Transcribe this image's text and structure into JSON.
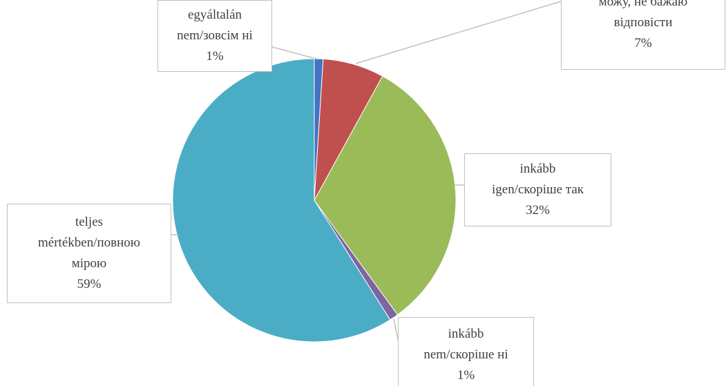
{
  "chart_data": {
    "type": "pie",
    "categories": [
      "egyáltalán\nnem/зовсім ні",
      "можу, не бажаю\nвідповісти",
      "inkább\nigen/скоріше так",
      "inkább\nnem/скоріше ні",
      "teljes\nmértékben/повною\nмірою"
    ],
    "values": [
      1,
      7,
      32,
      1,
      59
    ],
    "value_labels": [
      "1%",
      "7%",
      "32%",
      "1%",
      "59%"
    ],
    "colors": [
      "#4472c4",
      "#c0504d",
      "#9bbb59",
      "#8064a2",
      "#4bacc6"
    ]
  }
}
